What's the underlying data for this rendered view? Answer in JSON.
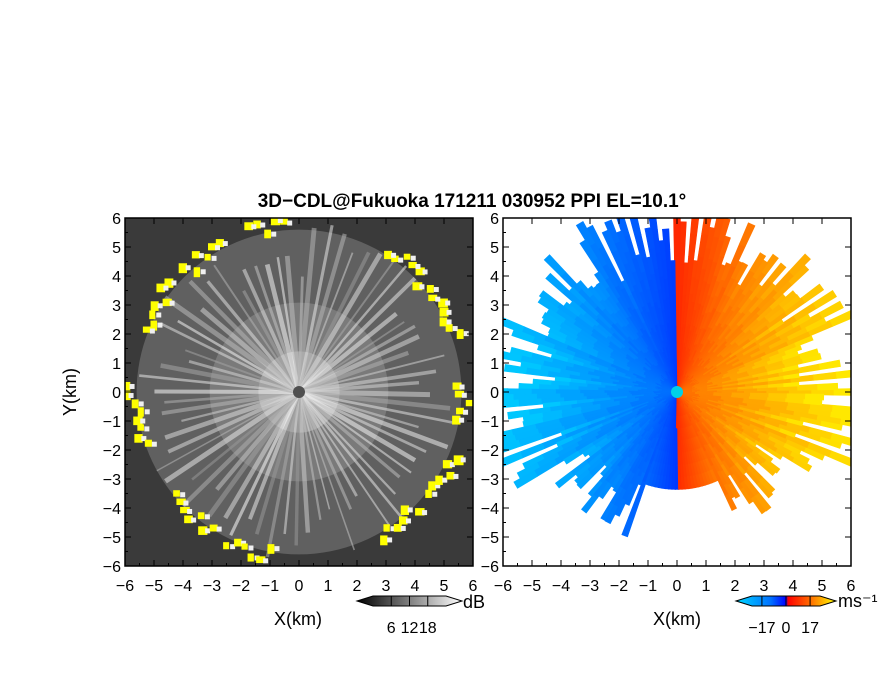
{
  "title": "3D−CDL@Fukuoka 171211 030952 PPI EL=10.1°",
  "chart_data": [
    {
      "type": "heatmap",
      "name": "reflectivity-ppi",
      "xlabel": "X(km)",
      "ylabel": "Y(km)",
      "xlim": [
        -6,
        6
      ],
      "ylim": [
        -6,
        6
      ],
      "x_ticks": [
        "−6",
        "−5",
        "−4",
        "−3",
        "−2",
        "−1",
        "0",
        "1",
        "2",
        "3",
        "4",
        "5",
        "6"
      ],
      "y_ticks": [
        "6",
        "5",
        "4",
        "3",
        "2",
        "1",
        "0",
        "−1",
        "−2",
        "−3",
        "−4",
        "−5",
        "−6"
      ],
      "colorbar": {
        "unit": "dB",
        "ticks": [
          "6",
          "12",
          "18"
        ],
        "values": [
          6,
          12,
          18
        ],
        "range": [
          0,
          24
        ],
        "colors": [
          "#000000",
          "#ffffff"
        ],
        "overflow_color": "#ffff00"
      },
      "radial_echo_range_km": 5.6
    },
    {
      "type": "heatmap",
      "name": "doppler-velocity-ppi",
      "xlabel": "X(km)",
      "xlim": [
        -6,
        6
      ],
      "ylim": [
        -6,
        6
      ],
      "x_ticks": [
        "−6",
        "−5",
        "−4",
        "−3",
        "−2",
        "−1",
        "0",
        "1",
        "2",
        "3",
        "4",
        "5",
        "6"
      ],
      "y_ticks": [
        "6",
        "5",
        "4",
        "3",
        "2",
        "1",
        "0",
        "−1",
        "−2",
        "−3",
        "−4",
        "−5",
        "−6"
      ],
      "colorbar": {
        "unit": "ms⁻¹",
        "ticks": [
          "−17",
          "0",
          "17"
        ],
        "values": [
          -17,
          0,
          17
        ],
        "range": [
          -24,
          24
        ],
        "colors": [
          "#00d8ff",
          "#0060ff",
          "#0000ff",
          "#ff0000",
          "#ff6000",
          "#ffff00"
        ]
      },
      "velocity_min": -17,
      "velocity_max": 17
    }
  ],
  "colors": {
    "axis": "#000000",
    "background": "#ffffff",
    "center_marker_left": "#505050",
    "center_marker_right": "#00d0e8"
  }
}
